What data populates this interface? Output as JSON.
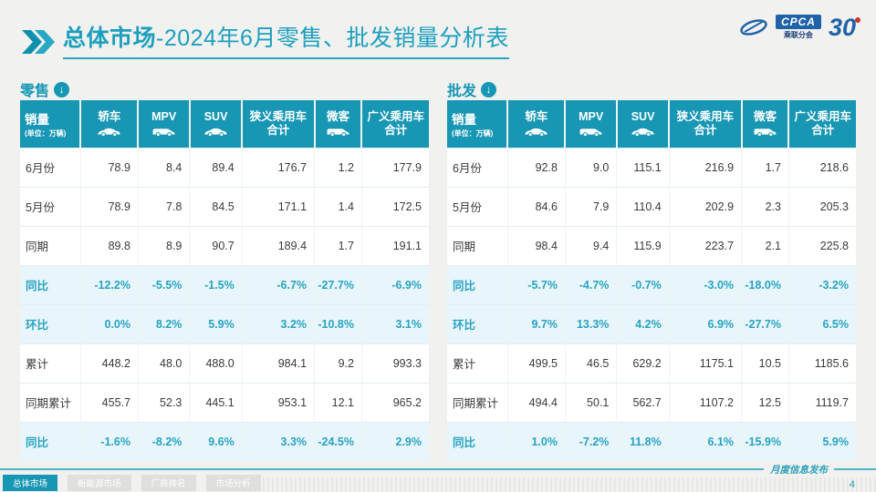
{
  "colors": {
    "accent": "#1797B4",
    "accent_light": "#29A3C1",
    "highlight_row_bg": "#E8F6FB",
    "logo_blue": "#2062A8",
    "title_teal": "#1C9FBE"
  },
  "header": {
    "title_bold": "总体市场",
    "title_rest": "-2024年6月零售、批发销量分析表",
    "logo": {
      "cpca": "CPCA",
      "sub": "乘联分会",
      "anniv": "30"
    }
  },
  "table": {
    "corner": {
      "title": "销量",
      "sub": "(单位：万辆)"
    },
    "columns": [
      {
        "label": "轿车",
        "label2": "",
        "icon": "sedan-icon"
      },
      {
        "label": "MPV",
        "label2": "",
        "icon": "mpv-icon"
      },
      {
        "label": "SUV",
        "label2": "",
        "icon": "suv-icon"
      },
      {
        "label": "狭义乘用车",
        "label2": "合计",
        "icon": ""
      },
      {
        "label": "微客",
        "label2": "",
        "icon": "van-icon"
      },
      {
        "label": "广义乘用车",
        "label2": "合计",
        "icon": ""
      }
    ]
  },
  "retail": {
    "section_title": "零售",
    "rows": [
      {
        "label": "6月份",
        "values": [
          "78.9",
          "8.4",
          "89.4",
          "176.7",
          "1.2",
          "177.9"
        ],
        "highlight": false
      },
      {
        "label": "5月份",
        "values": [
          "78.9",
          "7.8",
          "84.5",
          "171.1",
          "1.4",
          "172.5"
        ],
        "highlight": false
      },
      {
        "label": "同期",
        "values": [
          "89.8",
          "8.9",
          "90.7",
          "189.4",
          "1.7",
          "191.1"
        ],
        "highlight": false
      },
      {
        "label": "同比",
        "values": [
          "-12.2%",
          "-5.5%",
          "-1.5%",
          "-6.7%",
          "-27.7%",
          "-6.9%"
        ],
        "highlight": true
      },
      {
        "label": "环比",
        "values": [
          "0.0%",
          "8.2%",
          "5.9%",
          "3.2%",
          "-10.8%",
          "3.1%"
        ],
        "highlight": true
      },
      {
        "label": "累计",
        "values": [
          "448.2",
          "48.0",
          "488.0",
          "984.1",
          "9.2",
          "993.3"
        ],
        "highlight": false
      },
      {
        "label": "同期累计",
        "values": [
          "455.7",
          "52.3",
          "445.1",
          "953.1",
          "12.1",
          "965.2"
        ],
        "highlight": false
      },
      {
        "label": "同比",
        "values": [
          "-1.6%",
          "-8.2%",
          "9.6%",
          "3.3%",
          "-24.5%",
          "2.9%"
        ],
        "highlight": true
      }
    ]
  },
  "wholesale": {
    "section_title": "批发",
    "rows": [
      {
        "label": "6月份",
        "values": [
          "92.8",
          "9.0",
          "115.1",
          "216.9",
          "1.7",
          "218.6"
        ],
        "highlight": false
      },
      {
        "label": "5月份",
        "values": [
          "84.6",
          "7.9",
          "110.4",
          "202.9",
          "2.3",
          "205.3"
        ],
        "highlight": false
      },
      {
        "label": "同期",
        "values": [
          "98.4",
          "9.4",
          "115.9",
          "223.7",
          "2.1",
          "225.8"
        ],
        "highlight": false
      },
      {
        "label": "同比",
        "values": [
          "-5.7%",
          "-4.7%",
          "-0.7%",
          "-3.0%",
          "-18.0%",
          "-3.2%"
        ],
        "highlight": true
      },
      {
        "label": "环比",
        "values": [
          "9.7%",
          "13.3%",
          "4.2%",
          "6.9%",
          "-27.7%",
          "6.5%"
        ],
        "highlight": true
      },
      {
        "label": "累计",
        "values": [
          "499.5",
          "46.5",
          "629.2",
          "1175.1",
          "10.5",
          "1185.6"
        ],
        "highlight": false
      },
      {
        "label": "同期累计",
        "values": [
          "494.4",
          "50.1",
          "562.7",
          "1107.2",
          "12.5",
          "1119.7"
        ],
        "highlight": false
      },
      {
        "label": "同比",
        "values": [
          "1.0%",
          "-7.2%",
          "11.8%",
          "6.1%",
          "-15.9%",
          "5.9%"
        ],
        "highlight": true
      }
    ]
  },
  "footer": {
    "tabs": [
      {
        "label": "总体市场",
        "active": true
      },
      {
        "label": "新能源市场",
        "active": false
      },
      {
        "label": "厂商排名",
        "active": false
      },
      {
        "label": "市场分析",
        "active": false
      }
    ],
    "publish_label": "月度信息发布",
    "page_number": "4"
  }
}
